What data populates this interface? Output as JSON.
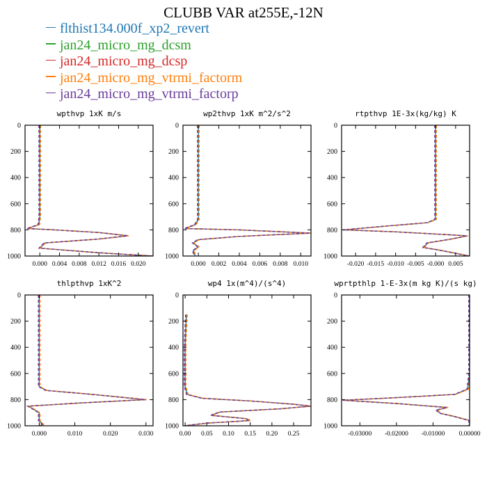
{
  "title": "CLUBB VAR at255E,-12N",
  "legend": [
    {
      "label": "flthist134.000f_xp2_revert",
      "color": "#1f77b4"
    },
    {
      "label": "jan24_micro_mg_dcsm",
      "color": "#2ca02c"
    },
    {
      "label": "jan24_micro_mg_dcsp",
      "color": "#d62728"
    },
    {
      "label": "jan24_micro_mg_vtrmi_factorm",
      "color": "#ff7f0e"
    },
    {
      "label": "jan24_micro_mg_vtrmi_factorp",
      "color": "#6a3d9a"
    }
  ],
  "chart_data": [
    {
      "type": "line",
      "title": "wpthvp   1xK m/s",
      "xlim": [
        -0.003,
        0.023
      ],
      "ylim": [
        1000,
        0
      ],
      "xticks": [
        0.0,
        0.004,
        0.008,
        0.012,
        0.016,
        0.02
      ],
      "xtick_labels": [
        "0.000",
        "0.004",
        "0.008",
        "0.012",
        "0.016",
        "0.020"
      ],
      "yticks": [
        0,
        200,
        400,
        600,
        800,
        1000
      ],
      "ytick_labels": [
        "0",
        "200",
        "400",
        "600",
        "800",
        "1000"
      ],
      "profile": [
        [
          0.0,
          0
        ],
        [
          0.0,
          100
        ],
        [
          0.0,
          300
        ],
        [
          0.0,
          500
        ],
        [
          0.0,
          700
        ],
        [
          -0.0002,
          760
        ],
        [
          -0.0025,
          790
        ],
        [
          0.003,
          800
        ],
        [
          0.012,
          820
        ],
        [
          0.018,
          845
        ],
        [
          0.012,
          870
        ],
        [
          0.001,
          900
        ],
        [
          0.0,
          940
        ],
        [
          0.012,
          975
        ],
        [
          0.023,
          1000
        ]
      ]
    },
    {
      "type": "line",
      "title": "wp2thvp   1xK m^2/s^2",
      "xlim": [
        -0.0015,
        0.011
      ],
      "ylim": [
        1000,
        0
      ],
      "xticks": [
        0.0,
        0.002,
        0.004,
        0.006,
        0.008,
        0.01
      ],
      "xtick_labels": [
        "0.000",
        "0.002",
        "0.004",
        "0.006",
        "0.008",
        "0.010"
      ],
      "yticks": [
        0,
        200,
        400,
        600,
        800,
        1000
      ],
      "ytick_labels": [
        "0",
        "200",
        "400",
        "600",
        "800",
        "1000"
      ],
      "profile": [
        [
          0.0,
          0
        ],
        [
          0.0,
          200
        ],
        [
          0.0,
          400
        ],
        [
          0.0,
          600
        ],
        [
          0.0,
          720
        ],
        [
          -0.0003,
          760
        ],
        [
          -0.0013,
          790
        ],
        [
          0.004,
          800
        ],
        [
          0.011,
          825
        ],
        [
          0.004,
          850
        ],
        [
          0.0,
          875
        ],
        [
          -0.0005,
          900
        ],
        [
          0.0,
          930
        ],
        [
          -0.0005,
          960
        ],
        [
          -0.0003,
          1000
        ]
      ]
    },
    {
      "type": "line",
      "title": "rtpthvp   1E-3x(kg/kg) K",
      "xlim": [
        -0.0235,
        0.0085
      ],
      "ylim": [
        1000,
        0
      ],
      "xticks": [
        -0.02,
        -0.015,
        -0.01,
        -0.005,
        0.0,
        0.005
      ],
      "xtick_labels": [
        "-0.020",
        "-0.015",
        "-0.010",
        "-0.005",
        "-0.000",
        "0.005"
      ],
      "yticks": [
        0,
        200,
        400,
        600,
        800,
        1000
      ],
      "ytick_labels": [
        "0",
        "200",
        "400",
        "600",
        "800",
        "1000"
      ],
      "profile": [
        [
          0.0,
          0
        ],
        [
          0.0,
          200
        ],
        [
          0.0,
          400
        ],
        [
          0.0,
          600
        ],
        [
          0.0,
          720
        ],
        [
          -0.002,
          745
        ],
        [
          -0.012,
          770
        ],
        [
          -0.023,
          800
        ],
        [
          -0.01,
          815
        ],
        [
          0.008,
          845
        ],
        [
          0.004,
          870
        ],
        [
          -0.002,
          900
        ],
        [
          -0.003,
          935
        ],
        [
          0.001,
          955
        ],
        [
          0.0085,
          1000
        ]
      ]
    },
    {
      "type": "line",
      "title": "thlpthvp   1xK^2",
      "xlim": [
        -0.004,
        0.032
      ],
      "ylim": [
        1000,
        0
      ],
      "xticks": [
        0.0,
        0.01,
        0.02,
        0.03
      ],
      "xtick_labels": [
        "0.000",
        "0.010",
        "0.020",
        "0.030"
      ],
      "yticks": [
        0,
        200,
        400,
        600,
        800,
        1000
      ],
      "ytick_labels": [
        "0",
        "200",
        "400",
        "600",
        "800",
        "1000"
      ],
      "profile": [
        [
          0.0,
          0
        ],
        [
          0.0,
          200
        ],
        [
          0.0,
          400
        ],
        [
          0.0,
          600
        ],
        [
          0.0,
          700
        ],
        [
          0.002,
          730
        ],
        [
          0.015,
          760
        ],
        [
          0.03,
          800
        ],
        [
          0.012,
          825
        ],
        [
          -0.003,
          850
        ],
        [
          0.0,
          900
        ],
        [
          0.0,
          960
        ],
        [
          0.001,
          990
        ],
        [
          0.0,
          1000
        ]
      ]
    },
    {
      "type": "line",
      "title": "wp4   1x(m^4)/(s^4)",
      "xlim": [
        -0.005,
        0.29
      ],
      "ylim": [
        1000,
        0
      ],
      "xticks": [
        0.0,
        0.05,
        0.1,
        0.15,
        0.2,
        0.25
      ],
      "xtick_labels": [
        "0.00",
        "0.05",
        "0.10",
        "0.15",
        "0.20",
        "0.25"
      ],
      "yticks": [
        0,
        200,
        400,
        600,
        800,
        1000
      ],
      "ytick_labels": [
        "0",
        "200",
        "400",
        "600",
        "800",
        "1000"
      ],
      "profile": [
        [
          0.003,
          150
        ],
        [
          0.001,
          300
        ],
        [
          0.0,
          400
        ],
        [
          0.0,
          500
        ],
        [
          0.0,
          600
        ],
        [
          0.0,
          700
        ],
        [
          0.005,
          760
        ],
        [
          0.04,
          790
        ],
        [
          0.15,
          810
        ],
        [
          0.25,
          835
        ],
        [
          0.29,
          850
        ],
        [
          0.22,
          870
        ],
        [
          0.08,
          895
        ],
        [
          0.06,
          920
        ],
        [
          0.14,
          945
        ],
        [
          0.15,
          960
        ],
        [
          0.05,
          980
        ],
        [
          0.0,
          1000
        ]
      ]
    },
    {
      "type": "line",
      "title": "wprtpthlp   1-E-3x(m kg K)/(s kg)",
      "xlim": [
        -0.035,
        0.0
      ],
      "ylim": [
        1000,
        0
      ],
      "xticks": [
        -0.03,
        -0.02,
        -0.01,
        0.0
      ],
      "xtick_labels": [
        "-0.03000",
        "-0.02000",
        "-0.01000",
        "0.00000"
      ],
      "yticks": [
        0,
        200,
        400,
        600,
        800,
        1000
      ],
      "ytick_labels": [
        "0",
        "200",
        "400",
        "600",
        "800",
        "1000"
      ],
      "profile": [
        [
          0.0,
          0
        ],
        [
          0.0,
          200
        ],
        [
          0.0,
          400
        ],
        [
          0.0,
          600
        ],
        [
          -0.0005,
          720
        ],
        [
          -0.004,
          760
        ],
        [
          -0.02,
          785
        ],
        [
          -0.0345,
          805
        ],
        [
          -0.02,
          830
        ],
        [
          -0.006,
          860
        ],
        [
          -0.009,
          880
        ],
        [
          -0.008,
          905
        ],
        [
          -0.004,
          930
        ],
        [
          0.0,
          960
        ],
        [
          0.0,
          1000
        ]
      ]
    }
  ]
}
